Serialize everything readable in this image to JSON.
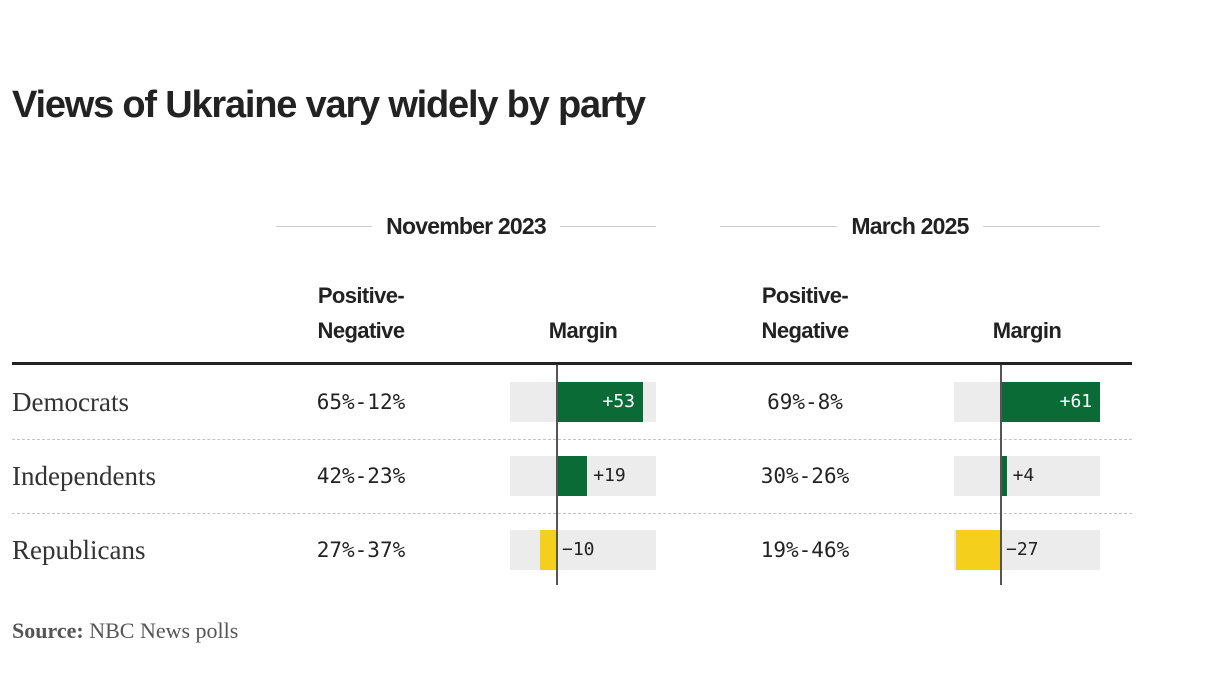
{
  "title": "Views of Ukraine vary widely by party",
  "source_label": "Source:",
  "source_text": "NBC News polls",
  "colors": {
    "positive": "#0b6b37",
    "negative": "#f4cf1c",
    "track": "#ececec"
  },
  "chart_data": {
    "type": "table",
    "title": "Views of Ukraine vary widely by party",
    "periods": [
      "November 2023",
      "March 2025"
    ],
    "column_headers": {
      "positive_negative": [
        "Positive-",
        "Negative"
      ],
      "margin": "Margin"
    },
    "categories": [
      "Democrats",
      "Independents",
      "Republicans"
    ],
    "series": [
      {
        "name": "November 2023",
        "positive_negative": [
          "65%-12%",
          "42%-23%",
          "27%-37%"
        ],
        "margin": [
          53,
          19,
          -10
        ],
        "margin_labels": [
          "+53",
          "+19",
          "−10"
        ]
      },
      {
        "name": "March 2025",
        "positive_negative": [
          "69%-8%",
          "30%-26%",
          "19%-46%"
        ],
        "margin": [
          61,
          4,
          -27
        ],
        "margin_labels": [
          "+61",
          "+4",
          "−27"
        ]
      }
    ]
  }
}
